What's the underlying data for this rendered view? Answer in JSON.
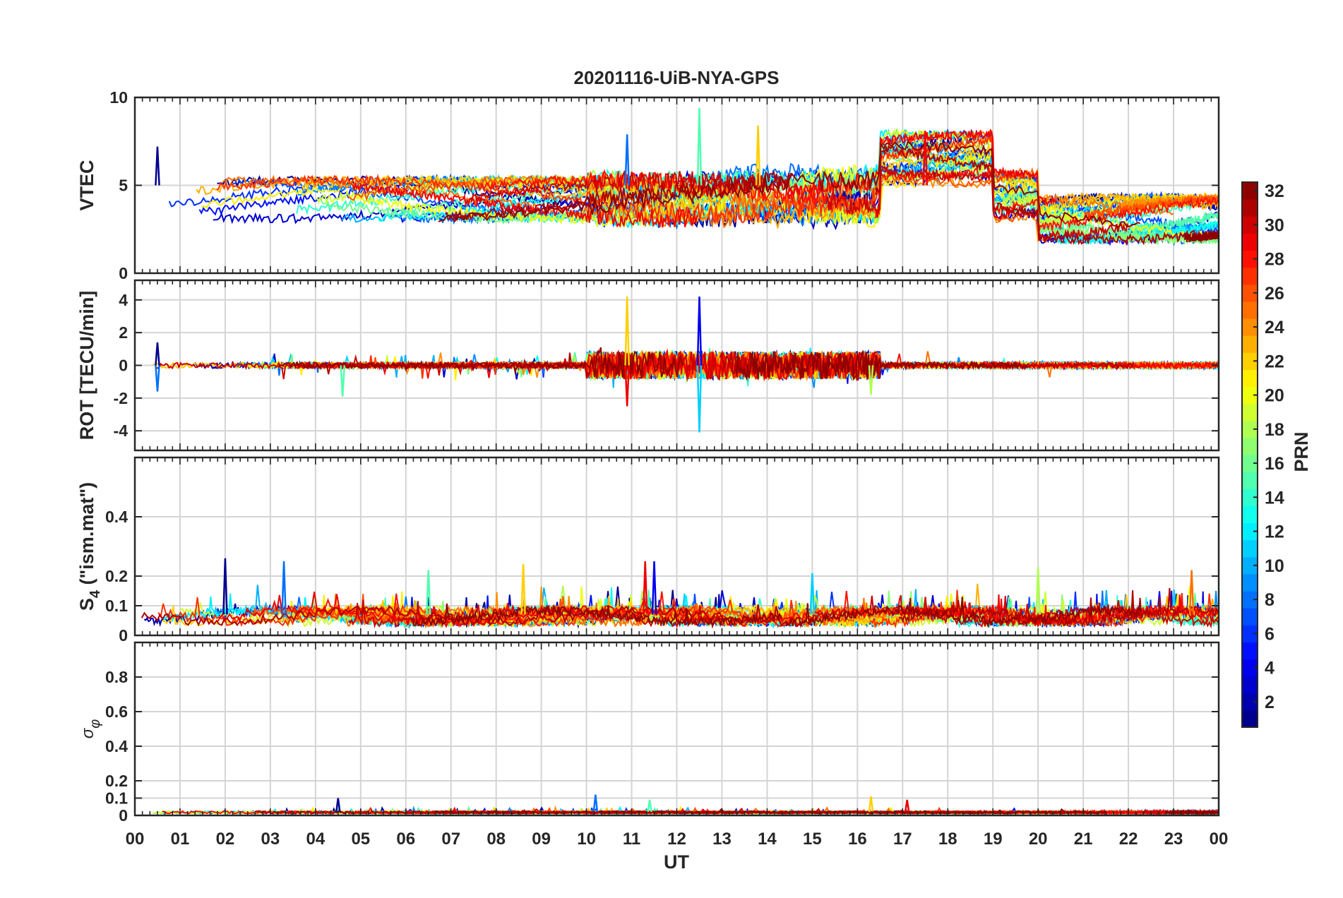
{
  "title": "20201116-UiB-NYA-GPS",
  "x_axis": {
    "label": "UT",
    "ticks": [
      "00",
      "01",
      "02",
      "03",
      "04",
      "05",
      "06",
      "07",
      "08",
      "09",
      "10",
      "11",
      "12",
      "13",
      "14",
      "15",
      "16",
      "17",
      "18",
      "19",
      "20",
      "21",
      "22",
      "23",
      "00"
    ],
    "range_hours": [
      0,
      24
    ]
  },
  "colorbar": {
    "label": "PRN",
    "range": [
      1,
      32
    ],
    "ticks": [
      "2",
      "4",
      "6",
      "8",
      "10",
      "12",
      "14",
      "16",
      "18",
      "20",
      "22",
      "24",
      "26",
      "28",
      "30",
      "32"
    ],
    "tick_values": [
      2,
      4,
      6,
      8,
      10,
      12,
      14,
      16,
      18,
      20,
      22,
      24,
      26,
      28,
      30,
      32
    ],
    "colormap": "jet"
  },
  "chart_data": [
    {
      "id": "vtec",
      "type": "line",
      "ylabel": "VTEC",
      "ylim": [
        0,
        10
      ],
      "yticks": [
        "0",
        "5",
        "10"
      ],
      "ytick_values": [
        0,
        5,
        10
      ],
      "grid": true,
      "series_description": "one trace per GPS satellite (PRN 1-32), colored by PRN; values mostly 2-8 TECU, peaks near 9.4 at 12.5 UT",
      "spikes": [
        {
          "x": 0.5,
          "y": 7.2
        },
        {
          "x": 10.9,
          "y": 7.9
        },
        {
          "x": 12.5,
          "y": 9.4
        },
        {
          "x": 13.8,
          "y": 8.4
        },
        {
          "x": 17.5,
          "y": 8.1
        }
      ]
    },
    {
      "id": "rot",
      "type": "line",
      "ylabel": "ROT [TECU/min]",
      "ylim": [
        -5.2,
        5.2
      ],
      "yticks": [
        "-4",
        "-2",
        "0",
        "2",
        "4"
      ],
      "ytick_values": [
        -4,
        -2,
        0,
        2,
        4
      ],
      "grid": true,
      "series_description": "rate of TEC per satellite; mostly within +/-0.6, enhanced 10-16 UT",
      "spikes": [
        {
          "x": 0.5,
          "y": 1.4
        },
        {
          "x": 0.5,
          "y": -1.6
        },
        {
          "x": 4.6,
          "y": -1.9
        },
        {
          "x": 10.9,
          "y": 4.2
        },
        {
          "x": 10.9,
          "y": -2.5
        },
        {
          "x": 12.5,
          "y": 4.2
        },
        {
          "x": 12.5,
          "y": -4.1
        },
        {
          "x": 16.3,
          "y": -1.8
        }
      ]
    },
    {
      "id": "s4",
      "type": "line",
      "ylabel": "S4 (\"ism.mat\")",
      "ylabel_main": "S",
      "ylabel_sub": "4",
      "ylabel_rest": " (\"ism.mat\")",
      "ylim": [
        0,
        0.6
      ],
      "yticks": [
        "0",
        "0.1",
        "0.2",
        "0.4"
      ],
      "ytick_values": [
        0,
        0.1,
        0.2,
        0.4
      ],
      "grid": true,
      "series_description": "amplitude scintillation index per satellite; baseline 0.04-0.1, peaks up to ~0.26",
      "spikes": [
        {
          "x": 2.0,
          "y": 0.26
        },
        {
          "x": 3.3,
          "y": 0.25
        },
        {
          "x": 6.5,
          "y": 0.22
        },
        {
          "x": 8.6,
          "y": 0.24
        },
        {
          "x": 11.3,
          "y": 0.25
        },
        {
          "x": 11.5,
          "y": 0.25
        },
        {
          "x": 15.0,
          "y": 0.21
        },
        {
          "x": 20.0,
          "y": 0.23
        },
        {
          "x": 23.4,
          "y": 0.22
        }
      ]
    },
    {
      "id": "sigma_phi",
      "type": "line",
      "ylabel": "σφ",
      "ylabel_main": "σ",
      "ylabel_sub": "φ",
      "ylim": [
        0,
        1
      ],
      "yticks": [
        "0",
        "0.1",
        "0.2",
        "0.4",
        "0.6",
        "0.8"
      ],
      "ytick_values": [
        0,
        0.1,
        0.2,
        0.4,
        0.6,
        0.8
      ],
      "grid": true,
      "series_description": "phase scintillation index per satellite; baseline near 0.02, small peaks to ~0.12",
      "spikes": [
        {
          "x": 4.5,
          "y": 0.1
        },
        {
          "x": 10.2,
          "y": 0.12
        },
        {
          "x": 11.4,
          "y": 0.09
        },
        {
          "x": 16.3,
          "y": 0.11
        },
        {
          "x": 17.1,
          "y": 0.09
        }
      ]
    }
  ]
}
